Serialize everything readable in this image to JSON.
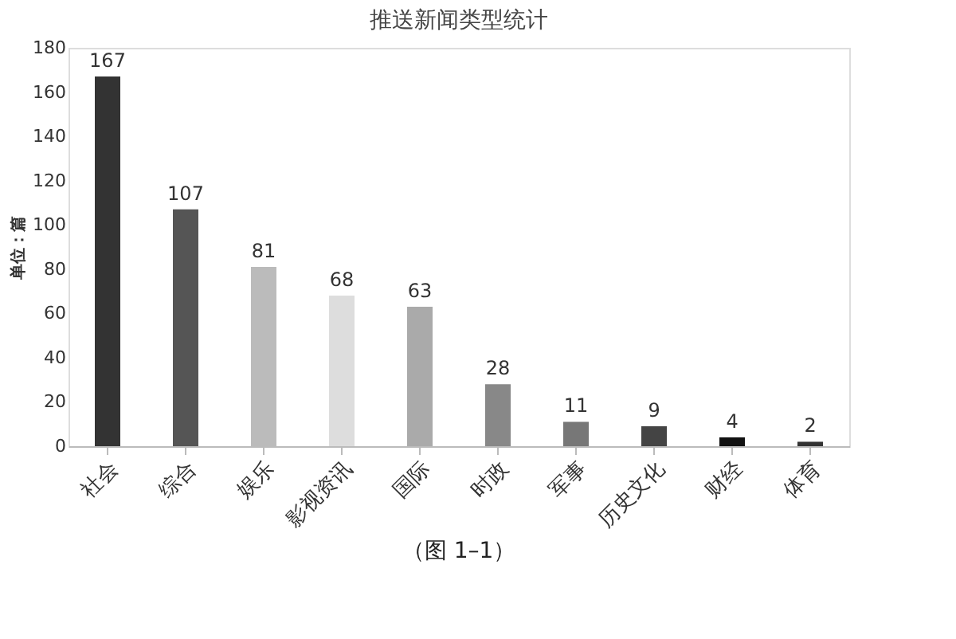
{
  "chart_data": {
    "type": "bar",
    "title": "推送新闻类型统计",
    "ylabel": "单位：篇",
    "categories": [
      "社会",
      "综合",
      "娱乐",
      "影视资讯",
      "国际",
      "时政",
      "军事",
      "历史文化",
      "财经",
      "体育"
    ],
    "values": [
      167,
      107,
      81,
      68,
      63,
      28,
      11,
      9,
      4,
      2
    ],
    "colors": [
      "#333333",
      "#555555",
      "#bbbbbb",
      "#dddddd",
      "#aaaaaa",
      "#888888",
      "#777777",
      "#444444",
      "#111111",
      "#333333"
    ],
    "ylim": [
      0,
      180
    ],
    "yticks": [
      0,
      20,
      40,
      60,
      80,
      100,
      120,
      140,
      160,
      180
    ],
    "grid": false,
    "data_labels": true,
    "annotations": [
      "（图 1–1）"
    ]
  }
}
